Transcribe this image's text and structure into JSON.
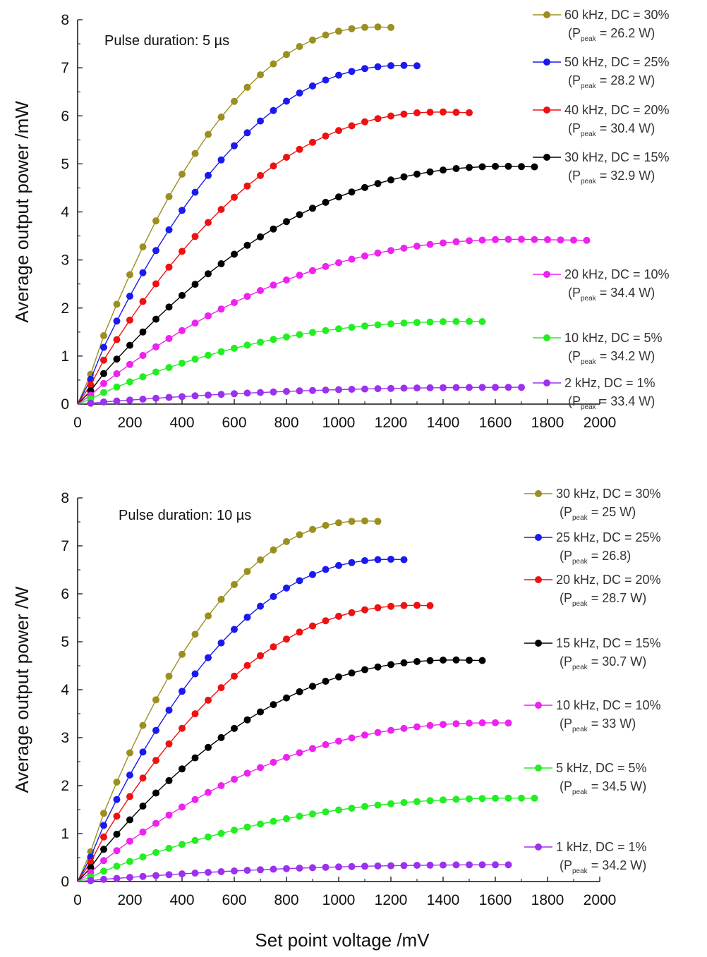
{
  "chart_data": [
    {
      "type": "line",
      "title": "",
      "annotation": "Pulse duration: 5 µs",
      "xlabel": "",
      "ylabel": "Average output power /mW",
      "xlim": [
        0,
        2000
      ],
      "ylim": [
        0,
        8
      ],
      "xticks": [
        0,
        200,
        400,
        600,
        800,
        1000,
        1200,
        1400,
        1600,
        1800,
        2000
      ],
      "yticks": [
        0,
        1,
        2,
        3,
        4,
        5,
        6,
        7,
        8
      ],
      "grid": false,
      "legend_position": "right",
      "series": [
        {
          "name": "60 kHz, DC = 30%",
          "peak": "= 26.2 W)",
          "color": "#9b8f1f",
          "xmax": 1200,
          "ymax": 7.85,
          "vmax": 1150
        },
        {
          "name": "50 kHz, DC = 25%",
          "peak": "= 28.2 W)",
          "color": "#1a1aee",
          "xmax": 1300,
          "ymax": 7.05,
          "vmax": 1250
        },
        {
          "name": "40 kHz, DC = 20%",
          "peak": "= 30.4 W)",
          "color": "#ee1111",
          "xmax": 1500,
          "ymax": 6.08,
          "vmax": 1400
        },
        {
          "name": "30 kHz, DC = 15%",
          "peak": "= 32.9 W)",
          "color": "#000000",
          "xmax": 1750,
          "ymax": 4.95,
          "vmax": 1650
        },
        {
          "name": "20 kHz, DC = 10%",
          "peak": "= 34.4 W)",
          "color": "#ee22ee",
          "xmax": 1950,
          "ymax": 3.43,
          "vmax": 1700
        },
        {
          "name": "10 kHz, DC =   5%",
          "peak": "= 34.2 W)",
          "color": "#22ee22",
          "xmax": 1550,
          "ymax": 1.72,
          "vmax": 1500
        },
        {
          "name": "  2 kHz, DC =   1%",
          "peak": "= 33.4 W)",
          "color": "#9b30ee",
          "xmax": 1700,
          "ymax": 0.35,
          "vmax": 1700
        }
      ]
    },
    {
      "type": "line",
      "title": "",
      "annotation": "Pulse duration: 10 µs",
      "xlabel": "Set point voltage /mV",
      "ylabel": "Average output power /W",
      "xlim": [
        0,
        2000
      ],
      "ylim": [
        0,
        8
      ],
      "xticks": [
        0,
        200,
        400,
        600,
        800,
        1000,
        1200,
        1400,
        1600,
        1800,
        2000
      ],
      "yticks": [
        0,
        1,
        2,
        3,
        4,
        5,
        6,
        7,
        8
      ],
      "grid": false,
      "legend_position": "right",
      "series": [
        {
          "name": "30 kHz, DC = 30%",
          "peak": "= 25 W)",
          "color": "#9b8f1f",
          "xmax": 1150,
          "ymax": 7.52,
          "vmax": 1100
        },
        {
          "name": "25 kHz, DC = 25%",
          "peak": "= 26.8)",
          "color": "#1a1aee",
          "xmax": 1250,
          "ymax": 6.72,
          "vmax": 1200
        },
        {
          "name": "20 kHz, DC = 20%",
          "peak": "= 28.7 W)",
          "color": "#ee1111",
          "xmax": 1350,
          "ymax": 5.76,
          "vmax": 1300
        },
        {
          "name": "15 kHz, DC = 15%",
          "peak": "= 30.7 W)",
          "color": "#000000",
          "xmax": 1550,
          "ymax": 4.62,
          "vmax": 1450
        },
        {
          "name": "10 kHz, DC = 10%",
          "peak": "= 33 W)",
          "color": "#ee22ee",
          "xmax": 1650,
          "ymax": 3.31,
          "vmax": 1600
        },
        {
          "name": "  5 kHz, DC =   5%",
          "peak": "= 34.5 W)",
          "color": "#22ee22",
          "xmax": 1750,
          "ymax": 1.74,
          "vmax": 1700
        },
        {
          "name": "  1 kHz, DC =   1%",
          "peak": "= 34.2 W)",
          "color": "#9b30ee",
          "xmax": 1650,
          "ymax": 0.35,
          "vmax": 1650
        }
      ]
    }
  ],
  "legend_peak_prefix": "(P",
  "legend_peak_sub": "peak",
  "x_step": 50
}
